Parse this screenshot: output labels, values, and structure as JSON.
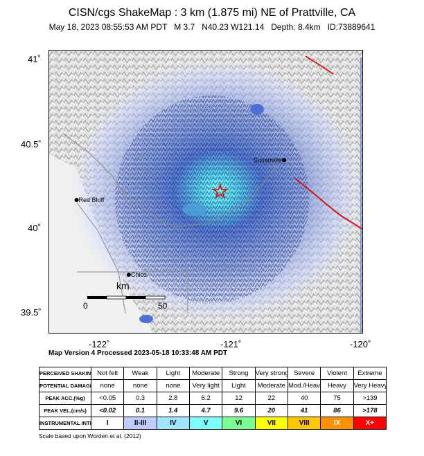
{
  "title": "CISN/cgs ShakeMap : 3 km (1.875 mi) NE of Prattville, CA",
  "subtitle": "May 18, 2023 08:55:53 AM PDT   M 3.7   N40.23 W121.14   Depth: 8.4km   ID:73889641",
  "map": {
    "lat_labels": [
      "41˚",
      "40.5˚",
      "40˚",
      "39.5˚"
    ],
    "lon_labels": [
      "-122˚",
      "-121˚",
      "-120˚"
    ],
    "cities": [
      {
        "name": "Susanville",
        "lon": -120.65,
        "lat": 40.42
      },
      {
        "name": "Red Bluff",
        "lon": -122.24,
        "lat": 40.18
      },
      {
        "name": "Chico",
        "lon": -121.84,
        "lat": 39.73
      }
    ],
    "epicenter": {
      "lon": -121.14,
      "lat": 40.23,
      "symbol": "star-icon"
    },
    "scale_bar": {
      "unit": "km",
      "start": "0",
      "end": "50"
    },
    "extent": {
      "lon_min": -122.45,
      "lon_max": -120.05,
      "lat_min": 39.38,
      "lat_max": 41.08
    }
  },
  "version_text": "Map Version 4 Processed 2023-05-18 10:33:48 AM PDT",
  "legend": {
    "rows": [
      {
        "header": "PERCEIVED SHAKING",
        "cells": [
          "Not felt",
          "Weak",
          "Light",
          "Moderate",
          "Strong",
          "Very strong",
          "Severe",
          "Violent",
          "Extreme"
        ]
      },
      {
        "header": "POTENTIAL DAMAGE",
        "cells": [
          "none",
          "none",
          "none",
          "Very light",
          "Light",
          "Moderate",
          "Mod./Heavy",
          "Heavy",
          "Very Heavy"
        ]
      },
      {
        "header": "PEAK ACC.(%g)",
        "cells": [
          "<0.05",
          "0.3",
          "2.8",
          "6.2",
          "12",
          "22",
          "40",
          "75",
          ">139"
        ]
      },
      {
        "header": "PEAK VEL.(cm/s)",
        "cells": [
          "<0.02",
          "0.1",
          "1.4",
          "4.7",
          "9.6",
          "20",
          "41",
          "86",
          ">178"
        ]
      },
      {
        "header": "INSTRUMENTAL INTENSITY",
        "cells": [
          "I",
          "II-III",
          "IV",
          "V",
          "VI",
          "VII",
          "VIII",
          "IX",
          "X+"
        ]
      }
    ],
    "intensity_colors": [
      "#ffffff",
      "#bfccff",
      "#a0e6ff",
      "#80ffff",
      "#7aff93",
      "#ffff00",
      "#ffc800",
      "#ff9100",
      "#ff0000"
    ]
  },
  "scale_note": "Scale based upon Worden et al. (2012)"
}
